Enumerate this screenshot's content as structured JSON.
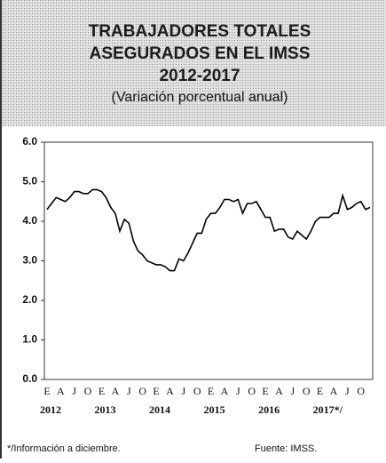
{
  "chart_data": {
    "type": "line",
    "title": [
      "TRABAJADORES TOTALES",
      "ASEGURADOS EN EL IMSS",
      "2012-2017"
    ],
    "subtitle": "(Variación porcentual anual)",
    "categories": [
      "E",
      null,
      null,
      "A",
      null,
      null,
      "J",
      null,
      null,
      "O",
      null,
      null,
      "E",
      null,
      null,
      "A",
      null,
      null,
      "J",
      null,
      null,
      "O",
      null,
      null,
      "E",
      null,
      null,
      "A",
      null,
      null,
      "J",
      null,
      null,
      "O",
      null,
      null,
      "E",
      null,
      null,
      "A",
      null,
      null,
      "J",
      null,
      null,
      "O",
      null,
      null,
      "E",
      null,
      null,
      "A",
      null,
      null,
      "J",
      null,
      null,
      "O",
      null,
      null,
      "E",
      null,
      null,
      "A",
      null,
      null,
      "J",
      null,
      null,
      "O",
      null,
      null
    ],
    "years": [
      "2012",
      "2013",
      "2014",
      "2015",
      "2016",
      "2017*/"
    ],
    "series": [
      {
        "color": "#000000",
        "values": [
          4.3,
          4.45,
          4.6,
          4.55,
          4.5,
          4.6,
          4.75,
          4.75,
          4.7,
          4.7,
          4.8,
          4.8,
          4.75,
          4.6,
          4.35,
          4.2,
          3.75,
          4.05,
          3.95,
          3.5,
          3.25,
          3.15,
          3.0,
          2.95,
          2.9,
          2.9,
          2.85,
          2.75,
          2.75,
          3.05,
          3.0,
          3.2,
          3.45,
          3.7,
          3.7,
          4.05,
          4.2,
          4.2,
          4.35,
          4.55,
          4.55,
          4.5,
          4.55,
          4.2,
          4.45,
          4.45,
          4.5,
          4.3,
          4.1,
          4.1,
          3.75,
          3.8,
          3.8,
          3.6,
          3.55,
          3.75,
          3.65,
          3.55,
          3.75,
          4.0,
          4.1,
          4.1,
          4.1,
          4.2,
          4.2,
          4.65,
          4.3,
          4.35,
          4.45,
          4.5,
          4.3,
          4.35
        ]
      }
    ],
    "ylim": [
      0,
      6
    ],
    "yticks": [
      {
        "value": 0,
        "label": "0.0"
      },
      {
        "value": 1,
        "label": "1.0"
      },
      {
        "value": 2,
        "label": "2.0"
      },
      {
        "value": 3,
        "label": "3.0"
      },
      {
        "value": 4,
        "label": "4.0"
      },
      {
        "value": 5,
        "label": "5.0"
      },
      {
        "value": 6,
        "label": "6.0"
      }
    ],
    "footnote": "*/Información a diciembre.",
    "source": "Fuente: IMSS."
  }
}
